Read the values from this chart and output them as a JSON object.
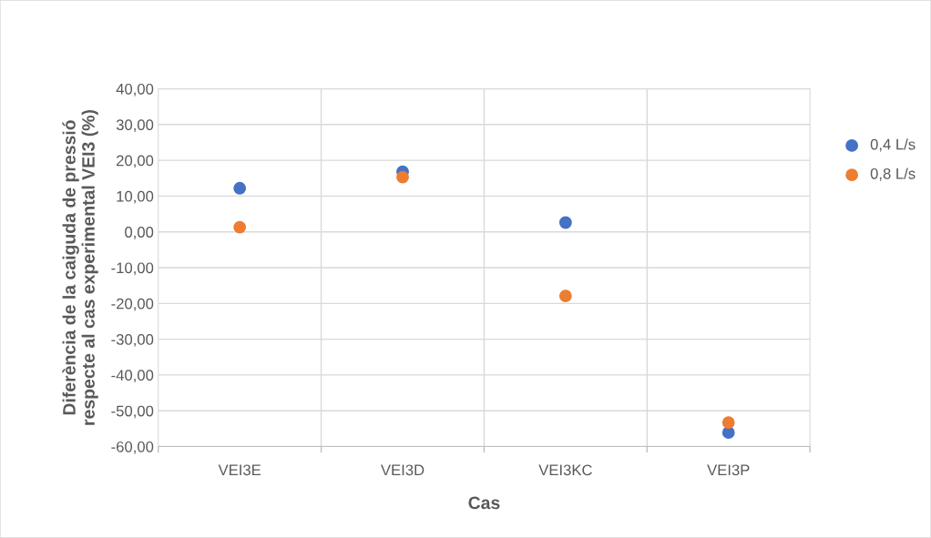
{
  "chart_data": {
    "type": "scatter",
    "xlabel": "Cas",
    "ylabel": "Diferència de la caiguda de pressió\nrespecte al cas experimental VEI3 (%)",
    "categories": [
      "VEI3E",
      "VEI3D",
      "VEI3KC",
      "VEI3P"
    ],
    "series": [
      {
        "name": "0,4 L/s",
        "color": "#4472c4",
        "values": [
          12.2,
          16.8,
          2.6,
          -56.1
        ]
      },
      {
        "name": "0,8 L/s",
        "color": "#ed7d31",
        "values": [
          1.3,
          15.3,
          -17.9,
          -53.3
        ]
      }
    ],
    "ylim": [
      -60,
      40
    ],
    "yticks": [
      {
        "value": -60,
        "label": "-60,00"
      },
      {
        "value": -50,
        "label": "-50,00"
      },
      {
        "value": -40,
        "label": "-40,00"
      },
      {
        "value": -30,
        "label": "-30,00"
      },
      {
        "value": -20,
        "label": "-20,00"
      },
      {
        "value": -10,
        "label": "-10,00"
      },
      {
        "value": 0,
        "label": "0,00"
      },
      {
        "value": 10,
        "label": "10,00"
      },
      {
        "value": 20,
        "label": "20,00"
      },
      {
        "value": 30,
        "label": "30,00"
      },
      {
        "value": 40,
        "label": "40,00"
      }
    ],
    "grid": true,
    "legend": "right",
    "marker": "circle"
  }
}
